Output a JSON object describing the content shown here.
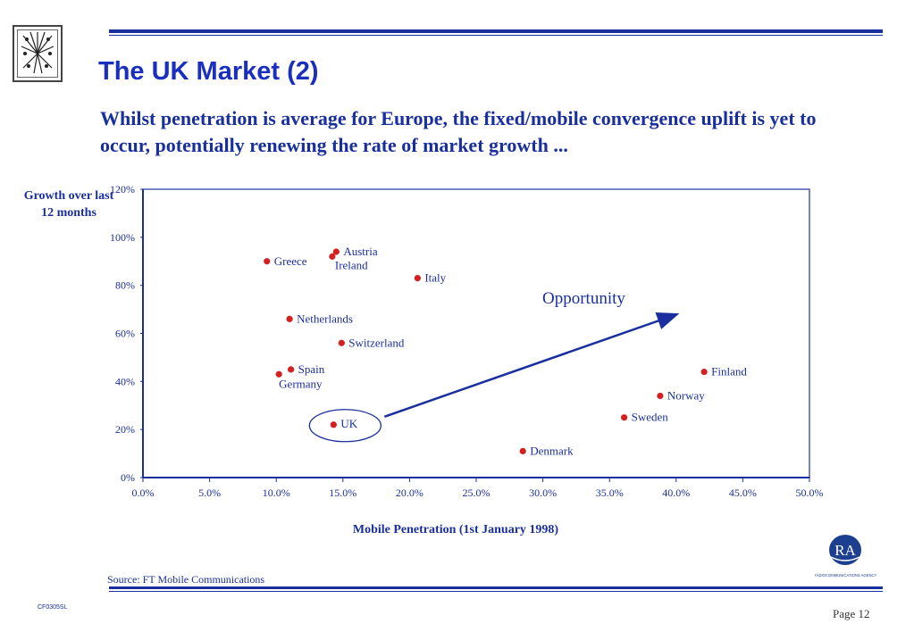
{
  "header": {
    "title": "The UK Market (2)",
    "subtitle": "Whilst penetration is average for Europe, the fixed/mobile convergence uplift is yet to occur, potentially renewing the rate of market growth ..."
  },
  "logo": {
    "icon": "star-burst-logo-icon"
  },
  "chart_data": {
    "type": "scatter",
    "title": "",
    "xlabel": "Mobile Penetration (1st January 1998)",
    "ylabel": "Growth over last 12 months",
    "xlim": [
      0,
      50
    ],
    "ylim": [
      0,
      120
    ],
    "x_ticks": [
      "0.0%",
      "5.0%",
      "10.0%",
      "15.0%",
      "20.0%",
      "25.0%",
      "30.0%",
      "35.0%",
      "40.0%",
      "45.0%",
      "50.0%"
    ],
    "y_ticks": [
      "0%",
      "20%",
      "40%",
      "60%",
      "80%",
      "100%",
      "120%"
    ],
    "points": [
      {
        "label": "Austria",
        "x": 14.5,
        "y": 94
      },
      {
        "label": "Ireland",
        "x": 14.2,
        "y": 92
      },
      {
        "label": "Greece",
        "x": 9.3,
        "y": 90
      },
      {
        "label": "Italy",
        "x": 20.6,
        "y": 83
      },
      {
        "label": "Netherlands",
        "x": 11.0,
        "y": 66
      },
      {
        "label": "Switzerland",
        "x": 14.9,
        "y": 56
      },
      {
        "label": "Spain",
        "x": 11.1,
        "y": 45
      },
      {
        "label": "Germany",
        "x": 10.2,
        "y": 43
      },
      {
        "label": "UK",
        "x": 14.3,
        "y": 22
      },
      {
        "label": "Denmark",
        "x": 28.5,
        "y": 11
      },
      {
        "label": "Finland",
        "x": 42.1,
        "y": 44
      },
      {
        "label": "Norway",
        "x": 38.8,
        "y": 34
      },
      {
        "label": "Sweden",
        "x": 36.1,
        "y": 25
      }
    ],
    "annotation": "Opportunity",
    "point_color": "#d42020",
    "accent_color": "#1a2f9e"
  },
  "footer": {
    "source": "Source: FT Mobile Communications",
    "code": "CF0305SL",
    "page": "Page 12",
    "ra_logo_text": "RA",
    "ra_logo_caption": "RADIOCOMMUNICATIONS AGENCY"
  }
}
